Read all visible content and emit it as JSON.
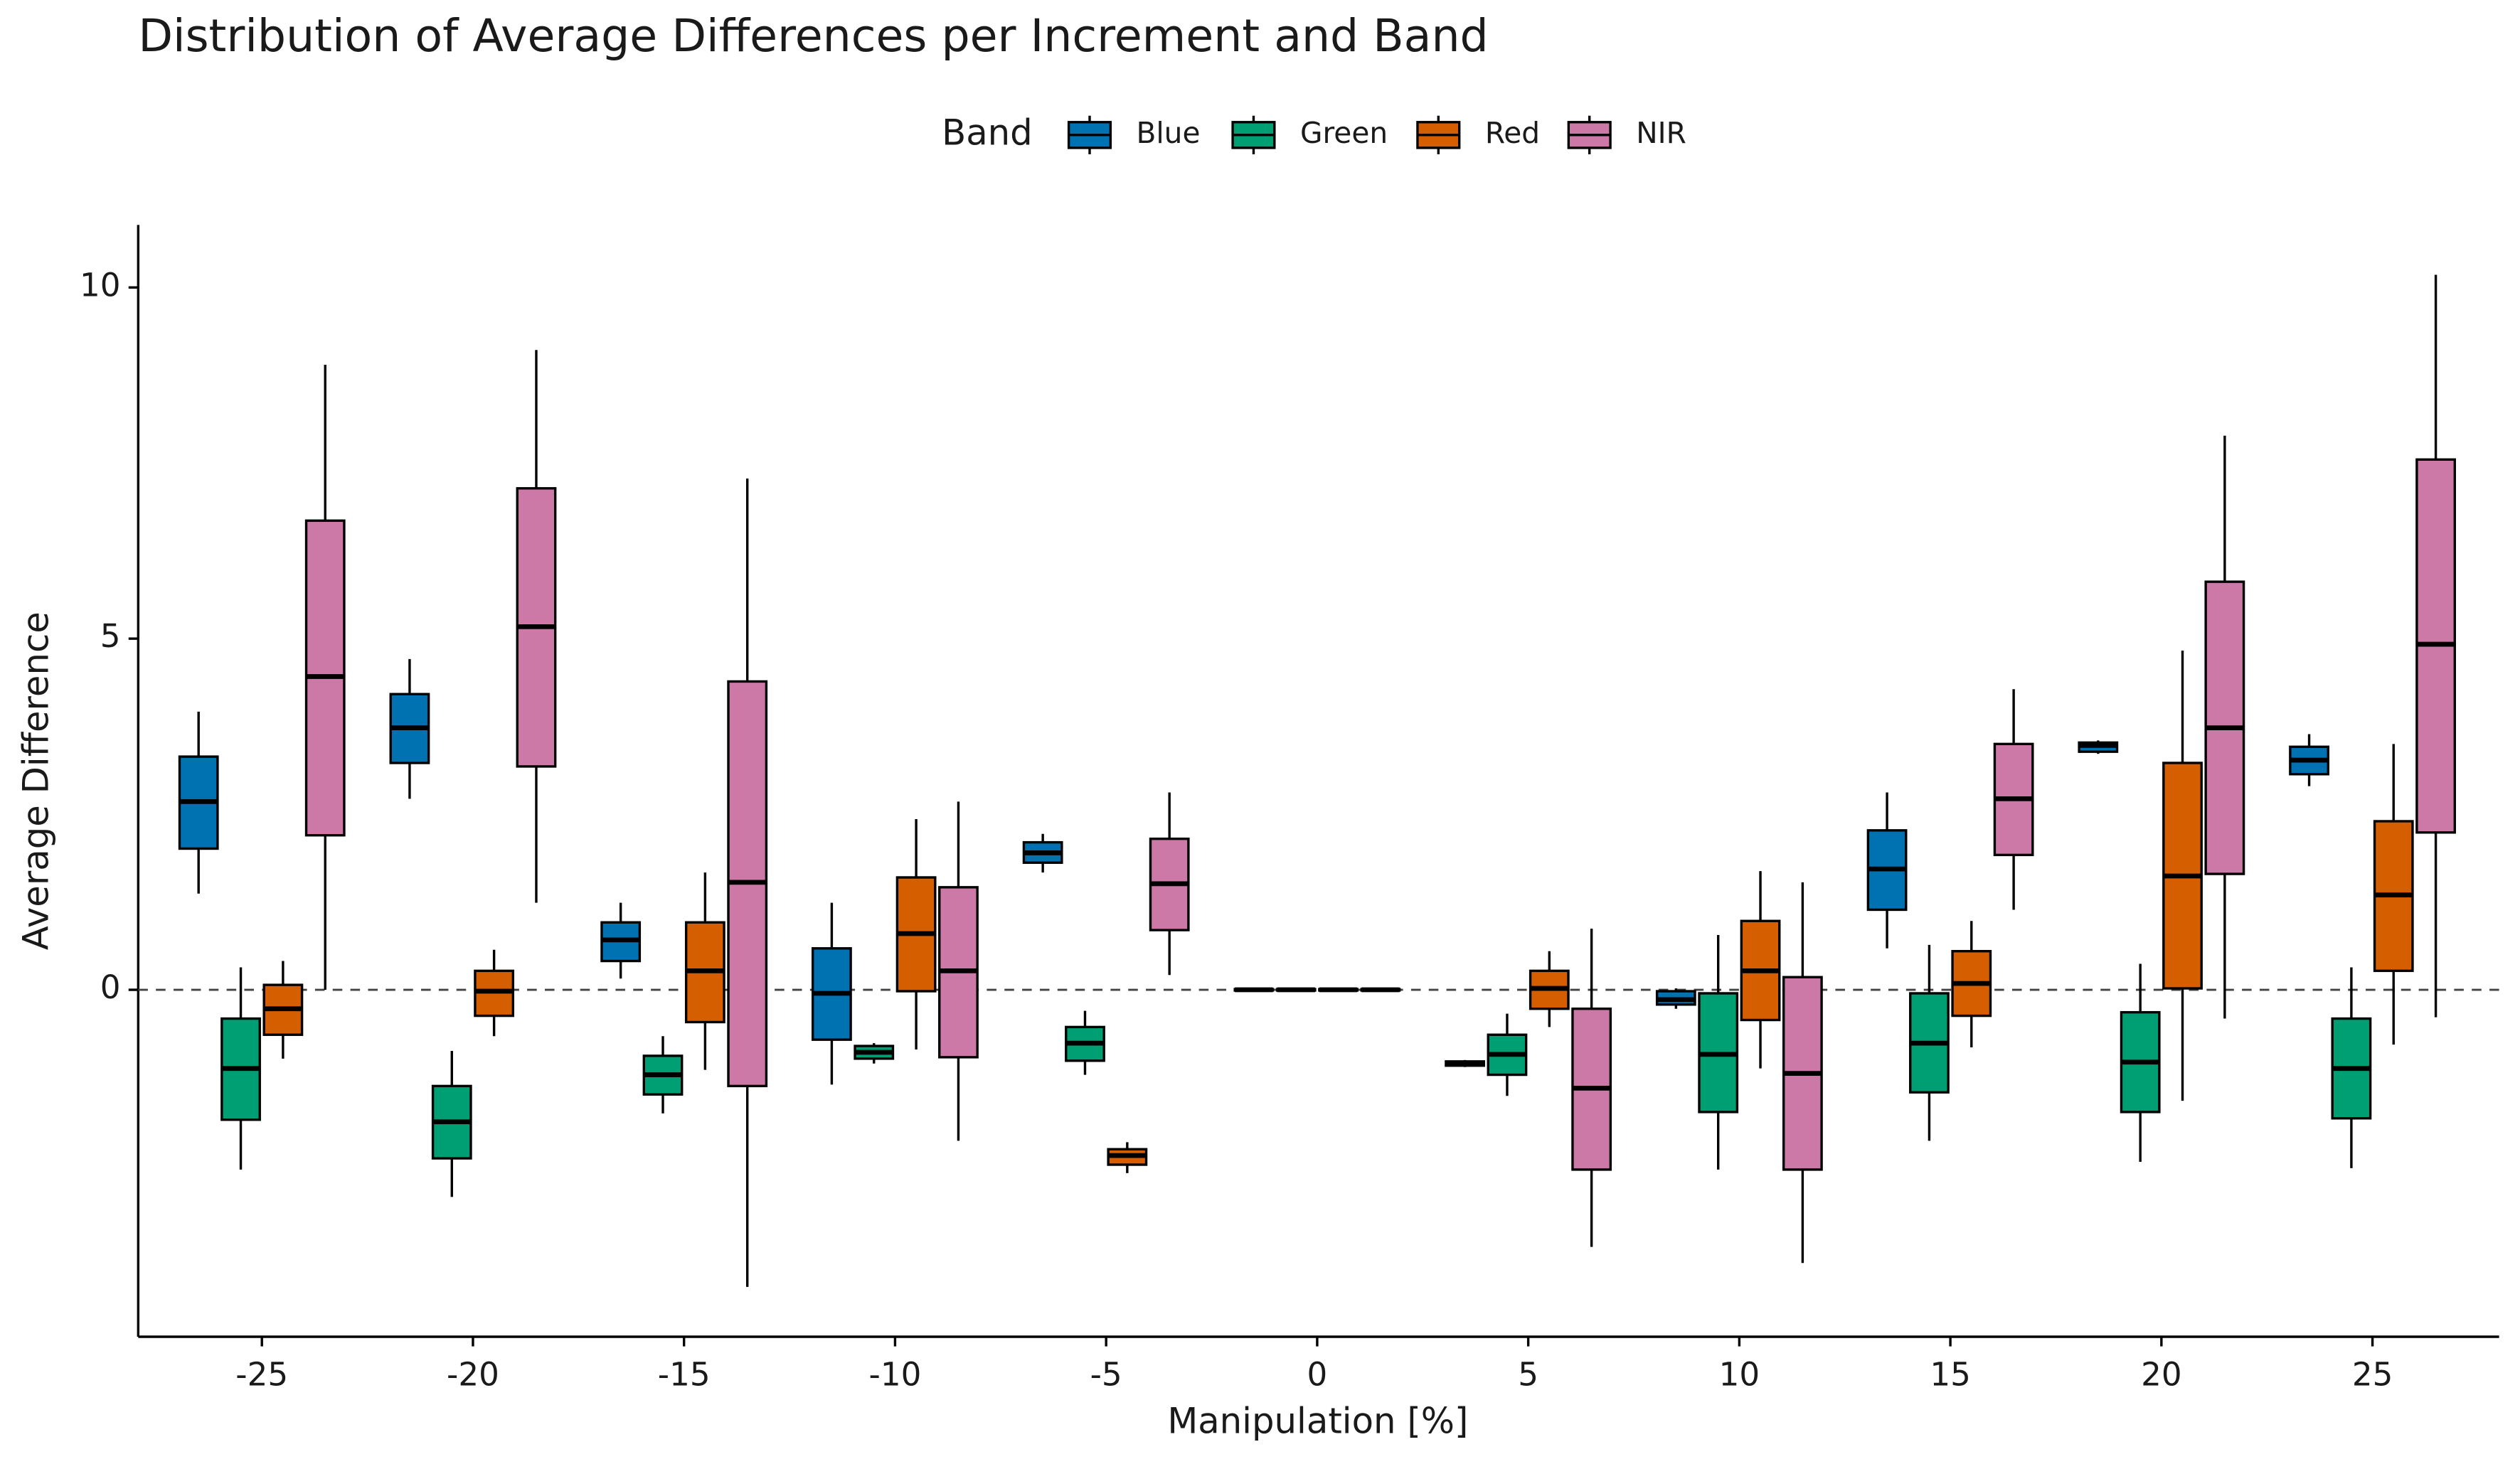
{
  "chart_data": {
    "type": "box",
    "title": "Distribution of Average Differences per Increment and Band",
    "x_label": "Manipulation [%]",
    "y_label": "Average Difference",
    "legend_title": "Band",
    "legend_position": "top",
    "x": [
      -25,
      -20,
      -15,
      -10,
      -5,
      0,
      5,
      10,
      15,
      20,
      25
    ],
    "xlim": [
      -27.93,
      28.0
    ],
    "ylim": [
      -4.94,
      10.89
    ],
    "xticks": [
      -25,
      -20,
      -15,
      -10,
      -5,
      0,
      5,
      10,
      15,
      20,
      25
    ],
    "yticks": [
      0,
      5,
      10
    ],
    "reference_line": 0,
    "series": [
      {
        "name": "Blue",
        "color": "#0072B2",
        "low": [
          1.37,
          2.72,
          0.16,
          -1.35,
          1.67,
          -0.02,
          -1.1,
          -0.27,
          0.59,
          3.36,
          2.9
        ],
        "q1": [
          2.01,
          3.23,
          0.41,
          -0.71,
          1.81,
          -0.01,
          -1.08,
          -0.21,
          1.14,
          3.39,
          3.07
        ],
        "median": [
          2.68,
          3.73,
          0.71,
          -0.05,
          1.95,
          0.0,
          -1.05,
          -0.14,
          1.72,
          3.48,
          3.27
        ],
        "q3": [
          3.32,
          4.21,
          0.96,
          0.59,
          2.1,
          0.01,
          -1.02,
          -0.02,
          2.27,
          3.52,
          3.46
        ],
        "high": [
          3.96,
          4.71,
          1.24,
          1.24,
          2.22,
          0.02,
          -1.0,
          0.02,
          2.81,
          3.55,
          3.64
        ]
      },
      {
        "name": "Green",
        "color": "#009E73",
        "low": [
          -2.56,
          -2.95,
          -1.76,
          -1.05,
          -1.21,
          -0.02,
          -1.51,
          -2.56,
          -2.15,
          -2.45,
          -2.54
        ],
        "q1": [
          -1.85,
          -2.4,
          -1.49,
          -0.98,
          -1.01,
          -0.01,
          -1.21,
          -1.74,
          -1.46,
          -1.74,
          -1.83
        ],
        "median": [
          -1.12,
          -1.88,
          -1.21,
          -0.89,
          -0.76,
          0.0,
          -0.92,
          -0.92,
          -0.76,
          -1.03,
          -1.12
        ],
        "q3": [
          -0.41,
          -1.37,
          -0.94,
          -0.8,
          -0.53,
          0.01,
          -0.64,
          -0.05,
          -0.05,
          -0.32,
          -0.41
        ],
        "high": [
          0.32,
          -0.87,
          -0.66,
          -0.76,
          -0.3,
          0.02,
          -0.34,
          0.78,
          0.64,
          0.37,
          0.32
        ]
      },
      {
        "name": "Red",
        "color": "#D55E00",
        "low": [
          -0.98,
          -0.66,
          -1.14,
          -0.85,
          -2.61,
          -0.02,
          -0.53,
          -1.12,
          -0.82,
          -1.58,
          -0.78
        ],
        "q1": [
          -0.64,
          -0.37,
          -0.46,
          -0.02,
          -2.49,
          -0.01,
          -0.27,
          -0.43,
          -0.37,
          0.02,
          0.27
        ],
        "median": [
          -0.27,
          -0.02,
          0.27,
          0.8,
          -2.36,
          0.0,
          0.02,
          0.27,
          0.09,
          1.62,
          1.35
        ],
        "q3": [
          0.07,
          0.27,
          0.96,
          1.6,
          -2.27,
          0.01,
          0.27,
          0.98,
          0.55,
          3.23,
          2.4
        ],
        "high": [
          0.41,
          0.57,
          1.67,
          2.43,
          -2.17,
          0.02,
          0.55,
          1.69,
          0.98,
          4.83,
          3.5
        ]
      },
      {
        "name": "NIR",
        "color": "#CC79A7",
        "low": [
          0.0,
          1.24,
          -4.23,
          -2.15,
          0.21,
          -0.02,
          -3.66,
          -3.89,
          1.14,
          -0.41,
          -0.39
        ],
        "q1": [
          2.2,
          3.18,
          -1.37,
          -0.96,
          0.85,
          -0.01,
          -2.56,
          -2.56,
          1.92,
          1.65,
          2.24
        ],
        "median": [
          4.46,
          5.17,
          1.53,
          0.27,
          1.51,
          0.0,
          -1.4,
          -1.19,
          2.72,
          3.73,
          4.92
        ],
        "q3": [
          6.68,
          7.14,
          4.39,
          1.46,
          2.15,
          0.01,
          -0.27,
          0.18,
          3.5,
          5.81,
          7.55
        ],
        "high": [
          8.9,
          9.11,
          7.28,
          2.68,
          2.81,
          0.02,
          0.87,
          1.53,
          4.28,
          7.89,
          10.18
        ]
      }
    ]
  }
}
